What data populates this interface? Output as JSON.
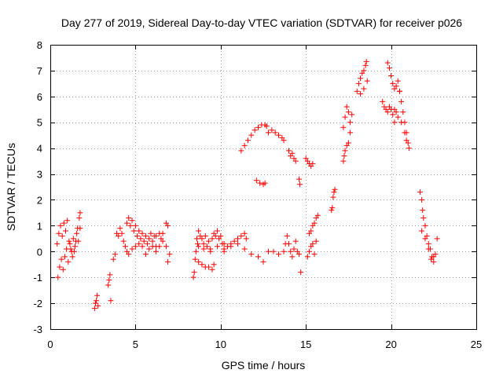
{
  "chart_data": {
    "type": "scatter",
    "title": "Day 277 of 2019, Sidereal Day-to-day VTEC variation (SDTVAR) for receiver p026",
    "xlabel": "GPS time / hours",
    "ylabel": "SDTVAR / TECUs",
    "xlim": [
      0,
      25
    ],
    "ylim": [
      -3,
      8
    ],
    "x_ticks": [
      0,
      5,
      10,
      15,
      20,
      25
    ],
    "y_ticks": [
      -3,
      -2,
      -1,
      0,
      1,
      2,
      3,
      4,
      5,
      6,
      7,
      8
    ],
    "grid": true,
    "marker": "plus",
    "series_color": "#ff0000",
    "segments": [
      {
        "name": "s01",
        "points": [
          [
            0.45,
            -1.0
          ],
          [
            0.55,
            -0.6
          ],
          [
            0.65,
            -0.3
          ],
          [
            0.75,
            -0.7
          ],
          [
            0.85,
            -0.2
          ],
          [
            0.95,
            0.1
          ],
          [
            1.05,
            -0.4
          ],
          [
            1.15,
            0.3
          ],
          [
            1.25,
            0.0
          ],
          [
            1.35,
            0.5
          ],
          [
            1.45,
            0.2
          ],
          [
            1.55,
            0.7
          ],
          [
            1.65,
            0.4
          ],
          [
            1.75,
            0.9
          ]
        ]
      },
      {
        "name": "s02",
        "points": [
          [
            0.4,
            0.3
          ],
          [
            0.5,
            0.7
          ],
          [
            0.6,
            1.0
          ],
          [
            0.7,
            0.6
          ],
          [
            0.8,
            1.1
          ],
          [
            0.9,
            0.8
          ],
          [
            1.0,
            1.2
          ],
          [
            1.1,
            0.4
          ],
          [
            1.2,
            0.1
          ],
          [
            1.3,
            -0.2
          ],
          [
            1.4,
            0.0
          ],
          [
            1.5,
            0.4
          ],
          [
            1.6,
            0.9
          ],
          [
            1.7,
            1.3
          ],
          [
            1.75,
            1.5
          ]
        ]
      },
      {
        "name": "s03",
        "points": [
          [
            2.6,
            -2.2
          ],
          [
            2.65,
            -2.0
          ],
          [
            2.7,
            -1.9
          ],
          [
            2.75,
            -1.7
          ],
          [
            2.8,
            -2.1
          ]
        ]
      },
      {
        "name": "s04",
        "points": [
          [
            3.4,
            -1.3
          ],
          [
            3.45,
            -1.1
          ],
          [
            3.5,
            -0.9
          ],
          [
            3.55,
            -1.9
          ]
        ]
      },
      {
        "name": "s05",
        "points": [
          [
            3.7,
            -0.3
          ],
          [
            3.8,
            -0.1
          ],
          [
            3.9,
            0.7
          ],
          [
            4.0,
            0.6
          ],
          [
            4.1,
            0.9
          ],
          [
            4.2,
            0.7
          ],
          [
            4.3,
            0.4
          ],
          [
            4.4,
            0.2
          ],
          [
            4.5,
            0.0
          ]
        ]
      },
      {
        "name": "s06",
        "points": [
          [
            4.5,
            1.1
          ],
          [
            4.6,
            1.3
          ],
          [
            4.7,
            1.0
          ],
          [
            4.8,
            1.2
          ],
          [
            4.9,
            0.8
          ],
          [
            5.0,
            1.0
          ],
          [
            5.1,
            0.6
          ],
          [
            5.2,
            0.8
          ],
          [
            5.3,
            0.5
          ],
          [
            5.4,
            0.7
          ],
          [
            5.5,
            0.4
          ],
          [
            5.6,
            0.6
          ],
          [
            5.7,
            0.3
          ],
          [
            5.8,
            0.5
          ],
          [
            5.9,
            0.7
          ],
          [
            6.0,
            0.4
          ],
          [
            6.1,
            0.6
          ],
          [
            6.2,
            0.2
          ]
        ]
      },
      {
        "name": "s07",
        "points": [
          [
            4.6,
            -0.1
          ],
          [
            4.8,
            0.1
          ],
          [
            5.0,
            0.2
          ],
          [
            5.2,
            0.3
          ],
          [
            5.4,
            0.2
          ],
          [
            5.6,
            -0.1
          ],
          [
            5.8,
            0.1
          ],
          [
            6.0,
            0.2
          ],
          [
            6.2,
            0.0
          ],
          [
            6.4,
            0.2
          ],
          [
            6.6,
            0.4
          ],
          [
            6.8,
            0.2
          ],
          [
            6.9,
            -0.4
          ],
          [
            7.0,
            -0.1
          ]
        ]
      },
      {
        "name": "s08",
        "points": [
          [
            6.2,
            0.6
          ],
          [
            6.4,
            0.7
          ],
          [
            6.5,
            0.5
          ],
          [
            6.6,
            0.7
          ],
          [
            6.8,
            1.1
          ],
          [
            6.9,
            1.0
          ]
        ]
      },
      {
        "name": "s09",
        "points": [
          [
            8.4,
            -1.0
          ],
          [
            8.45,
            -0.8
          ],
          [
            8.5,
            -0.3
          ],
          [
            8.55,
            0.0
          ],
          [
            8.6,
            0.5
          ],
          [
            8.65,
            0.3
          ],
          [
            8.7,
            0.2
          ]
        ]
      },
      {
        "name": "s10",
        "points": [
          [
            8.7,
            0.8
          ],
          [
            8.8,
            0.6
          ],
          [
            8.9,
            0.5
          ],
          [
            9.0,
            0.3
          ],
          [
            9.1,
            0.6
          ],
          [
            9.2,
            0.2
          ],
          [
            9.3,
            0.4
          ],
          [
            9.4,
            0.1
          ],
          [
            9.5,
            0.5
          ],
          [
            9.6,
            0.7
          ],
          [
            9.7,
            0.6
          ],
          [
            9.8,
            0.8
          ],
          [
            9.9,
            0.5
          ],
          [
            10.0,
            0.6
          ],
          [
            10.1,
            0.3
          ],
          [
            10.2,
            0.1
          ]
        ]
      },
      {
        "name": "s11",
        "points": [
          [
            8.7,
            -0.4
          ],
          [
            8.9,
            -0.5
          ],
          [
            9.1,
            -0.6
          ],
          [
            9.3,
            -0.6
          ],
          [
            9.5,
            -0.7
          ],
          [
            9.6,
            -0.5
          ]
        ]
      },
      {
        "name": "s12",
        "points": [
          [
            9.0,
            0.1
          ],
          [
            9.4,
            0.0
          ],
          [
            9.8,
            0.2
          ],
          [
            10.2,
            0.3
          ],
          [
            10.6,
            0.2
          ],
          [
            11.0,
            0.3
          ],
          [
            11.4,
            0.1
          ],
          [
            11.8,
            -0.1
          ],
          [
            12.2,
            -0.2
          ],
          [
            12.5,
            -0.4
          ]
        ]
      },
      {
        "name": "s13",
        "points": [
          [
            10.2,
            0.0
          ],
          [
            10.4,
            0.2
          ],
          [
            10.6,
            0.3
          ],
          [
            10.8,
            0.4
          ],
          [
            11.0,
            0.5
          ],
          [
            11.2,
            0.6
          ],
          [
            11.4,
            0.7
          ],
          [
            11.5,
            0.5
          ]
        ]
      },
      {
        "name": "s14",
        "points": [
          [
            11.2,
            3.9
          ],
          [
            11.4,
            4.1
          ],
          [
            11.6,
            4.3
          ],
          [
            11.8,
            4.5
          ],
          [
            12.0,
            4.7
          ],
          [
            12.2,
            4.8
          ],
          [
            12.4,
            4.9
          ],
          [
            12.6,
            4.9
          ],
          [
            12.7,
            4.85
          ]
        ]
      },
      {
        "name": "s15",
        "points": [
          [
            12.1,
            2.75
          ],
          [
            12.3,
            2.65
          ],
          [
            12.5,
            2.6
          ],
          [
            12.6,
            2.65
          ]
        ]
      },
      {
        "name": "s16",
        "points": [
          [
            12.8,
            4.6
          ],
          [
            13.0,
            4.7
          ],
          [
            13.2,
            4.6
          ],
          [
            13.4,
            4.5
          ],
          [
            13.6,
            4.4
          ],
          [
            13.7,
            4.3
          ]
        ]
      },
      {
        "name": "s17",
        "points": [
          [
            12.8,
            0.0
          ],
          [
            13.1,
            0.0
          ],
          [
            13.4,
            -0.1
          ],
          [
            13.7,
            0.0
          ],
          [
            13.8,
            0.3
          ],
          [
            13.9,
            0.6
          ],
          [
            14.0,
            0.3
          ],
          [
            14.1,
            0.0
          ],
          [
            14.2,
            -0.2
          ],
          [
            14.3,
            0.1
          ],
          [
            14.4,
            0.4
          ],
          [
            14.5,
            0.0
          ],
          [
            14.6,
            -0.1
          ]
        ]
      },
      {
        "name": "s18",
        "points": [
          [
            14.0,
            3.9
          ],
          [
            14.1,
            3.7
          ],
          [
            14.2,
            3.8
          ],
          [
            14.3,
            3.6
          ],
          [
            14.4,
            3.5
          ]
        ]
      },
      {
        "name": "s19",
        "points": [
          [
            14.6,
            2.8
          ],
          [
            14.65,
            2.6
          ],
          [
            14.7,
            -0.8
          ]
        ]
      },
      {
        "name": "s20",
        "points": [
          [
            15.0,
            3.6
          ],
          [
            15.1,
            3.5
          ],
          [
            15.2,
            3.4
          ],
          [
            15.3,
            3.3
          ],
          [
            15.4,
            3.4
          ]
        ]
      },
      {
        "name": "s21",
        "points": [
          [
            15.1,
            -0.2
          ],
          [
            15.2,
            0.0
          ],
          [
            15.3,
            0.2
          ],
          [
            15.4,
            0.3
          ],
          [
            15.5,
            -0.1
          ],
          [
            15.6,
            0.4
          ]
        ]
      },
      {
        "name": "s22",
        "points": [
          [
            15.2,
            0.7
          ],
          [
            15.3,
            0.8
          ],
          [
            15.4,
            1.0
          ],
          [
            15.5,
            1.1
          ],
          [
            15.6,
            1.3
          ],
          [
            15.7,
            1.4
          ]
        ]
      },
      {
        "name": "s23",
        "points": [
          [
            16.5,
            1.6
          ],
          [
            16.55,
            1.7
          ],
          [
            16.6,
            2.1
          ],
          [
            16.65,
            2.3
          ],
          [
            16.7,
            2.4
          ]
        ]
      },
      {
        "name": "s24",
        "points": [
          [
            17.2,
            3.5
          ],
          [
            17.25,
            3.7
          ],
          [
            17.3,
            3.9
          ],
          [
            17.4,
            4.1
          ],
          [
            17.5,
            4.2
          ]
        ]
      },
      {
        "name": "s25",
        "points": [
          [
            17.2,
            4.8
          ],
          [
            17.3,
            5.2
          ],
          [
            17.4,
            5.6
          ],
          [
            17.5,
            5.4
          ],
          [
            17.6,
            5.0
          ],
          [
            17.7,
            5.3
          ],
          [
            17.6,
            4.6
          ]
        ]
      },
      {
        "name": "s26",
        "points": [
          [
            18.0,
            6.2
          ],
          [
            18.1,
            6.5
          ],
          [
            18.2,
            6.7
          ],
          [
            18.3,
            6.9
          ],
          [
            18.4,
            7.0
          ],
          [
            18.5,
            7.2
          ],
          [
            18.55,
            7.35
          ],
          [
            18.6,
            6.6
          ],
          [
            18.4,
            6.3
          ],
          [
            18.2,
            6.1
          ]
        ]
      },
      {
        "name": "s27",
        "points": [
          [
            19.5,
            5.8
          ],
          [
            19.6,
            5.6
          ],
          [
            19.7,
            5.5
          ],
          [
            19.8,
            5.4
          ],
          [
            19.9,
            5.6
          ],
          [
            20.0,
            5.5
          ],
          [
            20.1,
            5.3
          ],
          [
            20.2,
            5.5
          ],
          [
            20.3,
            5.4
          ]
        ]
      },
      {
        "name": "s28",
        "points": [
          [
            19.8,
            7.3
          ],
          [
            19.9,
            7.1
          ],
          [
            20.0,
            6.8
          ],
          [
            20.1,
            6.5
          ],
          [
            20.2,
            6.3
          ],
          [
            20.3,
            6.4
          ],
          [
            20.4,
            6.6
          ],
          [
            20.5,
            6.2
          ]
        ]
      },
      {
        "name": "s29",
        "points": [
          [
            20.5,
            6.2
          ],
          [
            20.6,
            5.8
          ],
          [
            20.7,
            5.4
          ],
          [
            20.8,
            5.0
          ],
          [
            20.9,
            4.6
          ],
          [
            21.0,
            4.2
          ],
          [
            21.05,
            4.0
          ]
        ]
      },
      {
        "name": "s30",
        "points": [
          [
            20.2,
            5.0
          ],
          [
            20.4,
            5.2
          ],
          [
            20.6,
            5.0
          ],
          [
            20.8,
            4.6
          ],
          [
            20.9,
            4.3
          ]
        ]
      },
      {
        "name": "s31",
        "points": [
          [
            21.7,
            2.3
          ],
          [
            21.8,
            2.0
          ],
          [
            21.85,
            1.6
          ],
          [
            21.9,
            1.3
          ],
          [
            22.0,
            1.0
          ],
          [
            22.1,
            0.6
          ],
          [
            22.2,
            0.3
          ],
          [
            22.3,
            0.1
          ],
          [
            22.4,
            -0.2
          ],
          [
            22.5,
            -0.4
          ],
          [
            22.6,
            -0.1
          ],
          [
            22.7,
            0.5
          ]
        ]
      },
      {
        "name": "s32",
        "points": [
          [
            21.8,
            0.8
          ],
          [
            22.0,
            0.5
          ],
          [
            22.2,
            0.1
          ],
          [
            22.35,
            -0.3
          ],
          [
            22.5,
            -0.2
          ]
        ]
      }
    ]
  }
}
